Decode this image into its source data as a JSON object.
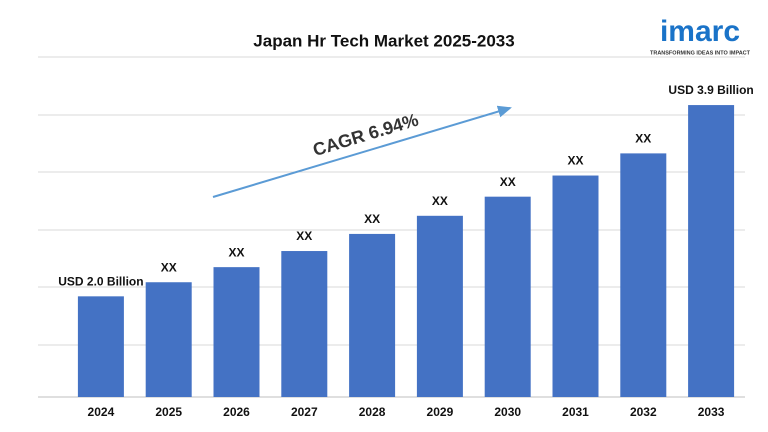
{
  "chart_data": {
    "type": "bar",
    "title": "Japan Hr Tech Market 2025-2033",
    "categories": [
      "2024",
      "2025",
      "2026",
      "2027",
      "2028",
      "2029",
      "2030",
      "2031",
      "2032",
      "2033"
    ],
    "values": [
      2.0,
      2.14,
      2.29,
      2.45,
      2.62,
      2.8,
      2.99,
      3.2,
      3.42,
      3.9
    ],
    "value_labels": [
      "USD 2.0 Billion",
      "XX",
      "XX",
      "XX",
      "XX",
      "XX",
      "XX",
      "XX",
      "XX",
      "USD 3.9 Billion"
    ],
    "color": "#4472c4",
    "ylim": [
      1,
      4
    ],
    "grid": true,
    "annotation": "CAGR 6.94%"
  },
  "logo": {
    "name": "imarc",
    "tagline": "TRANSFORMING IDEAS INTO IMPACT"
  }
}
